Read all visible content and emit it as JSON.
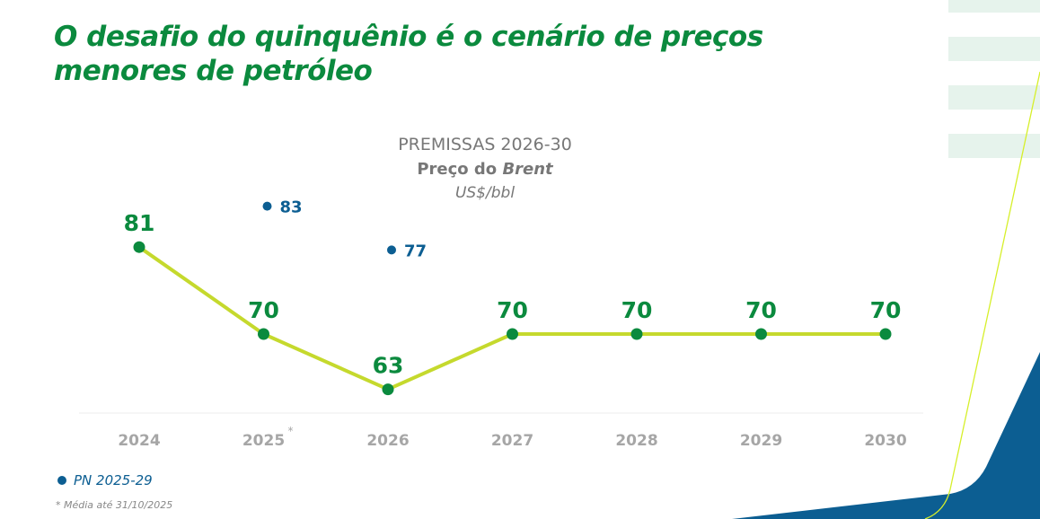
{
  "title": "O desafio do quinquênio é o cenário de preços menores de petróleo",
  "subtitle": {
    "line1": "PREMISSAS 2026-30",
    "line2_prefix": "Preço do ",
    "line2_italic": "Brent",
    "unit": "US$/bbl"
  },
  "colors": {
    "title": "#0b8a3e",
    "line": "#c5d92d",
    "point": "#0b8a3e",
    "pn": "#0c5e92",
    "axis_label": "#a6a6a6",
    "decor_blue": "#0c5e92",
    "decor_stripes": "#e6f3ec"
  },
  "chart_data": {
    "type": "line",
    "categories": [
      "2024",
      "2025",
      "2026",
      "2027",
      "2028",
      "2029",
      "2030"
    ],
    "category_marks": {
      "2025": "*"
    },
    "series": [
      {
        "values": [
          81,
          70,
          63,
          70,
          70,
          70,
          70
        ]
      },
      {
        "name": "PN 2025-29",
        "type": "scatter",
        "points": [
          {
            "x": "2025",
            "y": 83
          },
          {
            "x": "2026",
            "y": 77
          }
        ]
      }
    ],
    "grid": false
  },
  "legend": {
    "label": "PN 2025-29"
  },
  "footnote": "* Média até 31/10/2025"
}
